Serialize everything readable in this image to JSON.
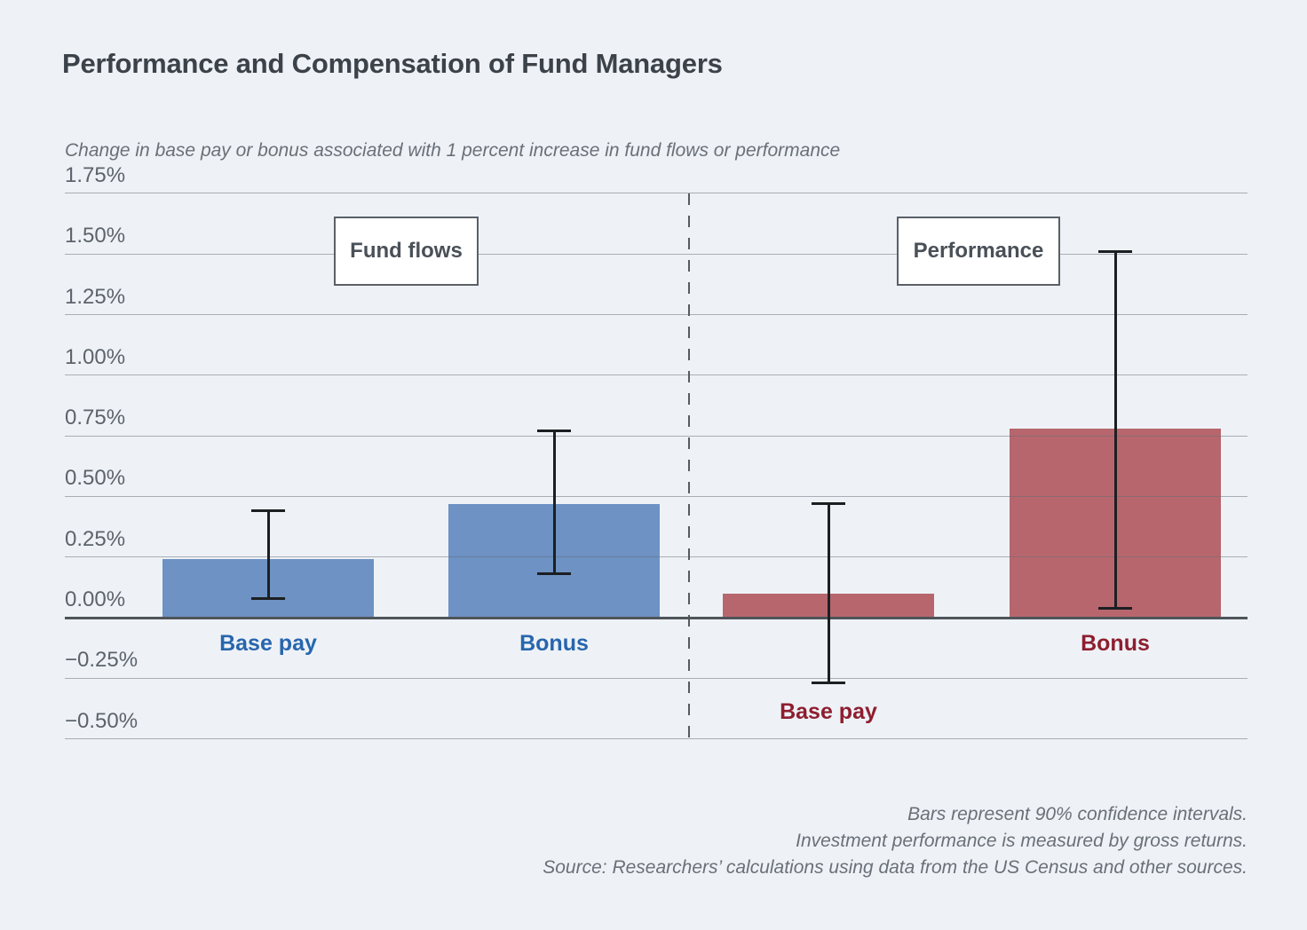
{
  "page": {
    "title": "Performance and Compensation of Fund Managers",
    "subtitle": "Change in base pay or bonus associated with 1 percent increase in fund flows or performance",
    "footnotes": [
      "Bars represent 90% confidence intervals.",
      "Investment performance is measured by gross returns.",
      "Source: Researchers’ calculations using data from the US Census and other sources."
    ],
    "background_color": "#eef2f7"
  },
  "chart_data": {
    "type": "bar",
    "title": "Performance and Compensation of Fund Managers",
    "subtitle": "Change in base pay or bonus associated with 1 percent increase in fund flows or performance",
    "value_unit": "percent",
    "ylim": [
      -0.5,
      1.75
    ],
    "ytick_step": 0.25,
    "grid": true,
    "error_bars": "90% confidence intervals",
    "yticks": [
      {
        "label": "1.75%",
        "value": 1.75
      },
      {
        "label": "1.50%",
        "value": 1.5
      },
      {
        "label": "1.25%",
        "value": 1.25
      },
      {
        "label": "1.00%",
        "value": 1.0
      },
      {
        "label": "0.75%",
        "value": 0.75
      },
      {
        "label": "0.50%",
        "value": 0.5
      },
      {
        "label": "0.25%",
        "value": 0.25
      },
      {
        "label": "0.00%",
        "value": 0.0
      },
      {
        "label": "−0.25%",
        "value": -0.25
      },
      {
        "label": "−0.50%",
        "value": -0.5
      }
    ],
    "groups": [
      {
        "label": "Fund flows",
        "bar_color": "#6d92c3",
        "label_color": "#2766ad",
        "bars": [
          {
            "category": "Base pay",
            "value": 0.24,
            "ci_low": 0.08,
            "ci_high": 0.44
          },
          {
            "category": "Bonus",
            "value": 0.47,
            "ci_low": 0.18,
            "ci_high": 0.77
          }
        ]
      },
      {
        "label": "Performance",
        "bar_color": "#b7666d",
        "label_color": "#8e1e2f",
        "bars": [
          {
            "category": "Base pay",
            "value": 0.1,
            "ci_low": -0.27,
            "ci_high": 0.47
          },
          {
            "category": "Bonus",
            "value": 0.78,
            "ci_low": 0.04,
            "ci_high": 1.51
          }
        ]
      }
    ]
  }
}
